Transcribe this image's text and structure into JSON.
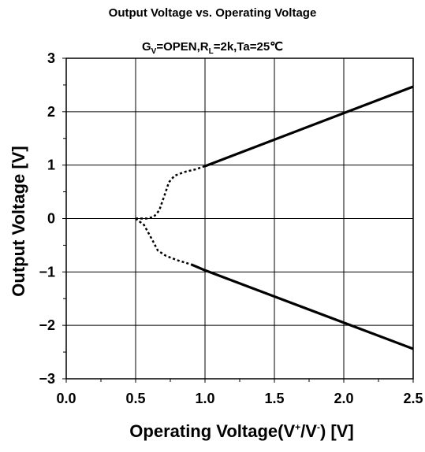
{
  "chart_data": {
    "type": "line",
    "title": "Output Voltage vs. Operating Voltage",
    "subtitle": {
      "g_main": "G",
      "g_sub": "V",
      "g_rest": "=OPEN,R",
      "r_sub": "L",
      "r_rest": "=2k,Ta=25℃"
    },
    "xlabel": {
      "main": "Operating Voltage(V",
      "sup1": "+",
      "mid": "/V",
      "sup2": "-",
      "tail": ") [V]"
    },
    "ylabel": "Output Voltage [V]",
    "xlim": [
      0.0,
      2.5
    ],
    "ylim": [
      -3,
      3
    ],
    "x_ticks": [
      "0.0",
      "0.5",
      "1.0",
      "1.5",
      "2.0",
      "2.5"
    ],
    "y_ticks": [
      "3",
      "2",
      "1",
      "0",
      "-1",
      "-2",
      "-3"
    ],
    "grid": true,
    "series": [
      {
        "style": "dotted",
        "points": [
          [
            0.5,
            0.0
          ],
          [
            0.58,
            0.0
          ],
          [
            0.63,
            0.03
          ],
          [
            0.67,
            0.15
          ],
          [
            0.71,
            0.45
          ],
          [
            0.74,
            0.68
          ],
          [
            0.78,
            0.8
          ],
          [
            0.85,
            0.87
          ],
          [
            0.93,
            0.92
          ],
          [
            1.0,
            0.98
          ]
        ]
      },
      {
        "style": "solid",
        "points": [
          [
            1.0,
            0.98
          ],
          [
            2.5,
            2.47
          ]
        ]
      },
      {
        "style": "dotted",
        "points": [
          [
            0.5,
            0.0
          ],
          [
            0.56,
            -0.12
          ],
          [
            0.62,
            -0.4
          ],
          [
            0.66,
            -0.6
          ],
          [
            0.72,
            -0.7
          ],
          [
            0.8,
            -0.78
          ],
          [
            0.9,
            -0.86
          ]
        ]
      },
      {
        "style": "solid",
        "points": [
          [
            0.9,
            -0.86
          ],
          [
            1.0,
            -0.97
          ],
          [
            2.5,
            -2.44
          ]
        ]
      }
    ]
  }
}
